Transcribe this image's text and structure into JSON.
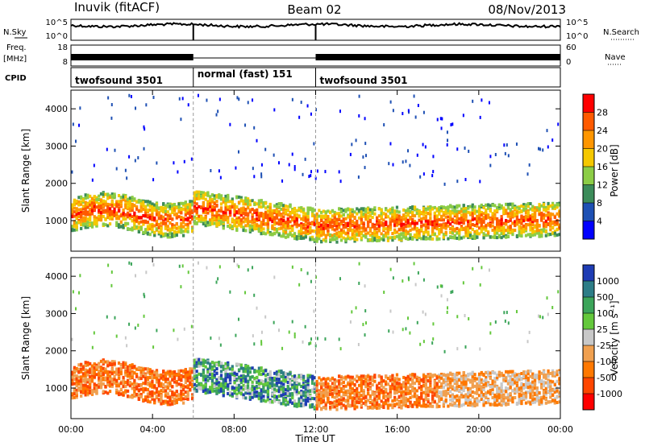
{
  "header": {
    "title_left": "Inuvik (fitACF)",
    "title_center": "Beam 02",
    "title_right": "08/Nov/2013"
  },
  "side_labels": {
    "nsky": "N.Sky",
    "freq": "Freq.",
    "mhz": "[MHz]",
    "cpid": "CPID",
    "nsearch": "N.Search",
    "nave": "Nave"
  },
  "noise_axis": {
    "left_top": "10^5",
    "left_bottom": "10^0",
    "right_top": "10^5",
    "right_bottom": "10^0"
  },
  "freq_axis": {
    "top": "18",
    "bottom": "8"
  },
  "nave_axis": {
    "top": "60",
    "bottom": "0"
  },
  "cpid_segments": [
    {
      "label": "twofsound 3501",
      "start_hour": 0,
      "end_hour": 6
    },
    {
      "label": "normal (fast) 151",
      "start_hour": 6,
      "end_hour": 12
    },
    {
      "label": "twofsound 3501",
      "start_hour": 12,
      "end_hour": 24
    }
  ],
  "x_axis": {
    "label": "Time UT",
    "ticks": [
      "00:00",
      "04:00",
      "08:00",
      "12:00",
      "16:00",
      "20:00",
      "00:00"
    ],
    "range_hours": [
      0,
      24
    ]
  },
  "chart_data": [
    {
      "type": "heatmap",
      "panel": "power",
      "ylabel": "Slant Range [km]",
      "y_ticks": [
        "1000",
        "2000",
        "3000",
        "4000"
      ],
      "ylim": [
        180,
        4500
      ],
      "colorbar_label": "Power [dB]",
      "colorbar_ticks": [
        "28",
        "24",
        "20",
        "16",
        "12",
        "8",
        "4"
      ],
      "colorbar_colors": [
        "#ff0000",
        "#ff5a00",
        "#ff9600",
        "#f5c800",
        "#8ccd46",
        "#3c8c5a",
        "#1e50b4",
        "#0000ff"
      ]
    },
    {
      "type": "heatmap",
      "panel": "velocity",
      "ylabel": "Slant Range [km]",
      "y_ticks": [
        "1000",
        "2000",
        "3000",
        "4000"
      ],
      "ylim": [
        180,
        4500
      ],
      "colorbar_label": "Velocity [m s⁻¹]",
      "colorbar_ticks": [
        "1000",
        "500",
        "100",
        "25",
        "-25",
        "-100",
        "-500",
        "-1000"
      ],
      "colorbar_colors": [
        "#1e3cb4",
        "#2d7d87",
        "#3ca55a",
        "#64c83c",
        "#c8c8c8",
        "#f0a050",
        "#ff7800",
        "#ff4600",
        "#ff0000"
      ]
    }
  ]
}
